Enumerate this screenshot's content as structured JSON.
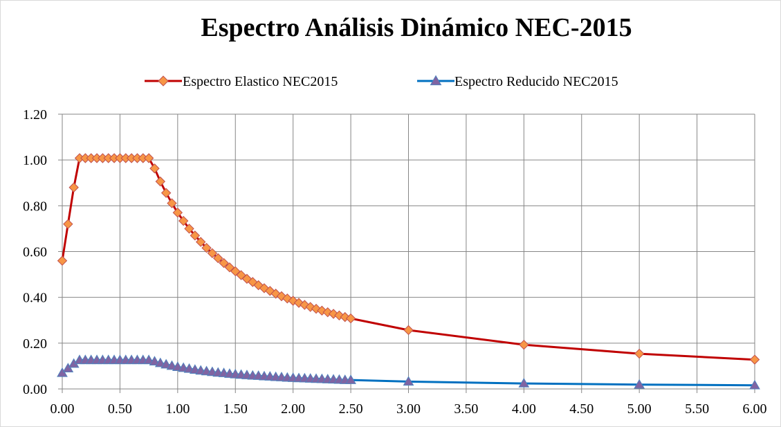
{
  "chart_data": {
    "type": "line",
    "title": "Espectro Análisis Dinámico NEC-2015",
    "xlabel": "",
    "ylabel": "",
    "xlim": [
      0,
      6
    ],
    "ylim": [
      0,
      1.2
    ],
    "x_ticks": [
      "0.00",
      "0.50",
      "1.00",
      "1.50",
      "2.00",
      "2.50",
      "3.00",
      "3.50",
      "4.00",
      "4.50",
      "5.00",
      "5.50",
      "6.00"
    ],
    "y_ticks": [
      "0.00",
      "0.20",
      "0.40",
      "0.60",
      "0.80",
      "1.00",
      "1.20"
    ],
    "grid": true,
    "legend_position": "top",
    "series": [
      {
        "name": "Espectro Elastico NEC2015",
        "color": "#c00000",
        "marker": "diamond",
        "marker_fill": "#f79646",
        "x": [
          0,
          0.05,
          0.1,
          0.15,
          0.2,
          0.25,
          0.3,
          0.35,
          0.4,
          0.45,
          0.5,
          0.55,
          0.6,
          0.65,
          0.7,
          0.75,
          0.8,
          0.85,
          0.9,
          0.95,
          1.0,
          1.05,
          1.1,
          1.15,
          1.2,
          1.25,
          1.3,
          1.35,
          1.4,
          1.45,
          1.5,
          1.55,
          1.6,
          1.65,
          1.7,
          1.75,
          1.8,
          1.85,
          1.9,
          1.95,
          2.0,
          2.05,
          2.1,
          2.15,
          2.2,
          2.25,
          2.3,
          2.35,
          2.4,
          2.45,
          2.5,
          3.0,
          4.0,
          5.0,
          6.0
        ],
        "values": [
          0.56,
          0.72,
          0.88,
          1.008,
          1.008,
          1.008,
          1.008,
          1.008,
          1.008,
          1.008,
          1.008,
          1.008,
          1.008,
          1.008,
          1.008,
          1.008,
          0.963,
          0.906,
          0.856,
          0.811,
          0.77,
          0.734,
          0.7,
          0.67,
          0.642,
          0.616,
          0.593,
          0.571,
          0.55,
          0.531,
          0.514,
          0.497,
          0.481,
          0.467,
          0.453,
          0.44,
          0.428,
          0.416,
          0.405,
          0.395,
          0.385,
          0.376,
          0.367,
          0.358,
          0.35,
          0.342,
          0.335,
          0.328,
          0.321,
          0.314,
          0.308,
          0.257,
          0.193,
          0.154,
          0.128
        ]
      },
      {
        "name": "Espectro Reducido NEC2015",
        "color": "#0070c0",
        "marker": "triangle",
        "marker_fill": "#8064a2",
        "x": [
          0,
          0.05,
          0.1,
          0.15,
          0.2,
          0.25,
          0.3,
          0.35,
          0.4,
          0.45,
          0.5,
          0.55,
          0.6,
          0.65,
          0.7,
          0.75,
          0.8,
          0.85,
          0.9,
          0.95,
          1.0,
          1.05,
          1.1,
          1.15,
          1.2,
          1.25,
          1.3,
          1.35,
          1.4,
          1.45,
          1.5,
          1.55,
          1.6,
          1.65,
          1.7,
          1.75,
          1.8,
          1.85,
          1.9,
          1.95,
          2.0,
          2.05,
          2.1,
          2.15,
          2.2,
          2.25,
          2.3,
          2.35,
          2.4,
          2.45,
          2.5,
          3.0,
          4.0,
          5.0,
          6.0
        ],
        "values": [
          0.07,
          0.09,
          0.11,
          0.126,
          0.126,
          0.126,
          0.126,
          0.126,
          0.126,
          0.126,
          0.126,
          0.126,
          0.126,
          0.126,
          0.126,
          0.126,
          0.12,
          0.113,
          0.107,
          0.101,
          0.096,
          0.092,
          0.088,
          0.084,
          0.08,
          0.077,
          0.074,
          0.071,
          0.069,
          0.066,
          0.064,
          0.062,
          0.06,
          0.058,
          0.057,
          0.055,
          0.054,
          0.052,
          0.051,
          0.049,
          0.048,
          0.047,
          0.046,
          0.045,
          0.044,
          0.043,
          0.042,
          0.041,
          0.04,
          0.039,
          0.039,
          0.032,
          0.024,
          0.019,
          0.016
        ]
      }
    ]
  }
}
